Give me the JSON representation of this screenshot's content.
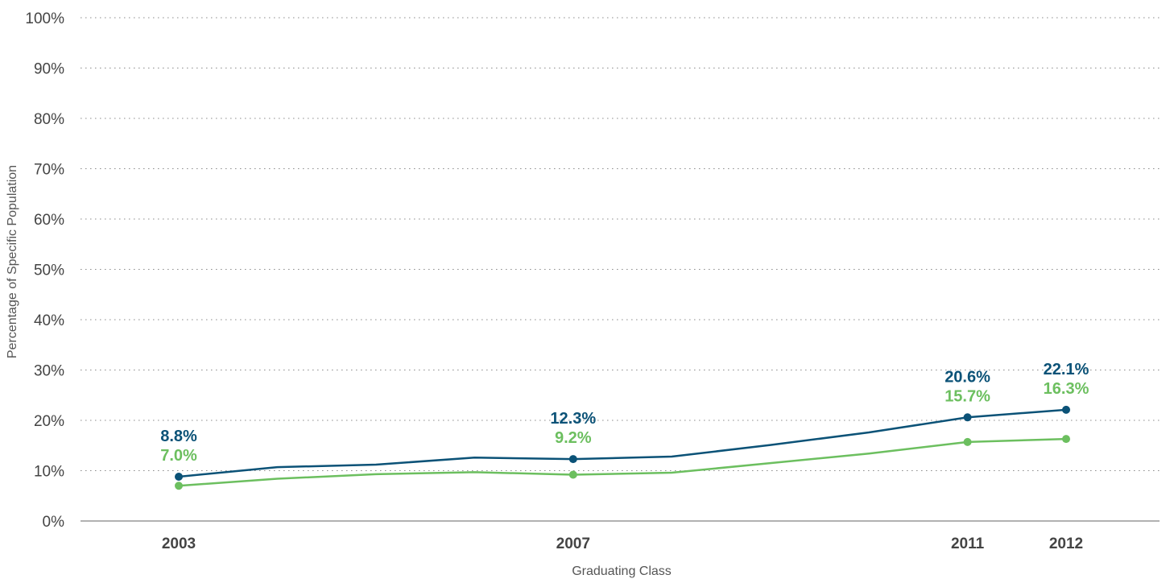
{
  "chart_data": {
    "type": "line",
    "title": "",
    "xlabel": "Graduating Class",
    "ylabel": "Percentage of Specific Population",
    "ylim": [
      0,
      100
    ],
    "yticks": [
      0,
      10,
      20,
      30,
      40,
      50,
      60,
      70,
      80,
      90,
      100
    ],
    "ytick_labels": [
      "0%",
      "10%",
      "20%",
      "30%",
      "40%",
      "50%",
      "60%",
      "70%",
      "80%",
      "90%",
      "100%"
    ],
    "xlim": [
      2002,
      2013
    ],
    "xticks": [
      2003,
      2007,
      2011,
      2012
    ],
    "xtick_labels": [
      "2003",
      "2007",
      "2011",
      "2012"
    ],
    "grid": "horizontal dotted",
    "legend": "none",
    "series": [
      {
        "color": "#0b5277",
        "x": [
          2003,
          2004,
          2005,
          2006,
          2007,
          2008,
          2009,
          2010,
          2011,
          2012
        ],
        "y": [
          8.8,
          10.7,
          11.2,
          12.6,
          12.3,
          12.8,
          15.1,
          17.6,
          20.6,
          22.1
        ],
        "markers": [
          2003,
          2007,
          2011,
          2012
        ],
        "labels": [
          {
            "x": 2003,
            "text": "8.8%"
          },
          {
            "x": 2007,
            "text": "12.3%"
          },
          {
            "x": 2011,
            "text": "20.6%"
          },
          {
            "x": 2012,
            "text": "22.1%"
          }
        ]
      },
      {
        "color": "#6cbf5f",
        "x": [
          2003,
          2004,
          2005,
          2006,
          2007,
          2008,
          2009,
          2010,
          2011,
          2012
        ],
        "y": [
          7.0,
          8.4,
          9.3,
          9.7,
          9.2,
          9.6,
          11.5,
          13.4,
          15.7,
          16.3
        ],
        "markers": [
          2003,
          2007,
          2011,
          2012
        ],
        "labels": [
          {
            "x": 2003,
            "text": "7.0%"
          },
          {
            "x": 2007,
            "text": "9.2%"
          },
          {
            "x": 2011,
            "text": "15.7%"
          },
          {
            "x": 2012,
            "text": "16.3%"
          }
        ]
      }
    ]
  }
}
